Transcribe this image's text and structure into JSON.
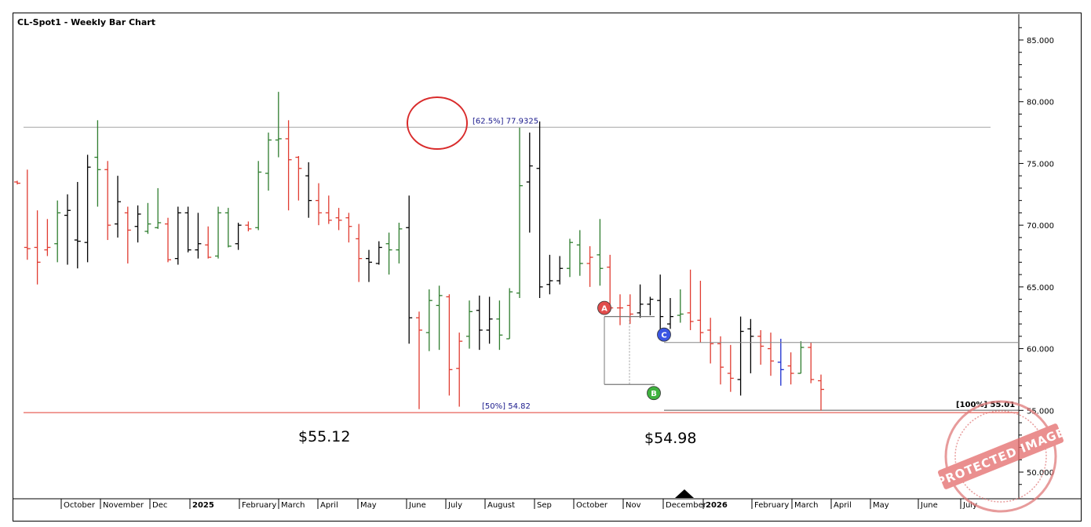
{
  "chart_data": {
    "type": "ohlc-bar",
    "title": "CL-Spot1 - Weekly Bar Chart",
    "y_axis": {
      "ylim": [
        47.5,
        87.5
      ],
      "tick_labels": [
        "85.000",
        "80.000",
        "75.000",
        "70.000",
        "65.000",
        "60.000",
        "55.000",
        "50.000"
      ],
      "tick_values": [
        85,
        80,
        75,
        70,
        65,
        60,
        55,
        50
      ],
      "side": "right"
    },
    "x_axis": {
      "month_labels": [
        "October",
        "November",
        "Dec",
        "2025",
        "February",
        "March",
        "April",
        "May",
        "June",
        "July",
        "August",
        "Sep",
        "October",
        "Nov",
        "December",
        "2026",
        "February",
        "March",
        "April",
        "May",
        "June",
        "July"
      ],
      "bold_labels": [
        "2025",
        "2026"
      ]
    },
    "bars": [
      {
        "o": 73.5,
        "h": 73.6,
        "l": 73.3,
        "c": 73.4,
        "col": "red"
      },
      {
        "o": 68.2,
        "h": 74.5,
        "l": 67.2,
        "c": 68.1,
        "col": "red"
      },
      {
        "o": 68.2,
        "h": 71.2,
        "l": 65.2,
        "c": 67.0,
        "col": "red"
      },
      {
        "o": 68.0,
        "h": 70.5,
        "l": 67.5,
        "c": 68.2,
        "col": "red"
      },
      {
        "o": 68.5,
        "h": 72.0,
        "l": 67.0,
        "c": 71.0,
        "col": "green"
      },
      {
        "o": 70.8,
        "h": 72.5,
        "l": 66.8,
        "c": 71.2,
        "col": "black"
      },
      {
        "o": 68.8,
        "h": 73.5,
        "l": 66.5,
        "c": 68.7,
        "col": "black"
      },
      {
        "o": 68.6,
        "h": 75.7,
        "l": 67.0,
        "c": 74.7,
        "col": "black"
      },
      {
        "o": 75.5,
        "h": 78.5,
        "l": 71.5,
        "c": 74.5,
        "col": "green"
      },
      {
        "o": 74.5,
        "h": 75.2,
        "l": 68.8,
        "c": 70.0,
        "col": "red"
      },
      {
        "o": 70.1,
        "h": 74.0,
        "l": 69.0,
        "c": 71.9,
        "col": "black"
      },
      {
        "o": 71.0,
        "h": 71.5,
        "l": 66.9,
        "c": 69.6,
        "col": "red"
      },
      {
        "o": 69.9,
        "h": 71.6,
        "l": 68.6,
        "c": 70.9,
        "col": "black"
      },
      {
        "o": 69.5,
        "h": 71.8,
        "l": 69.3,
        "c": 70.1,
        "col": "green"
      },
      {
        "o": 69.8,
        "h": 73.0,
        "l": 69.7,
        "c": 70.2,
        "col": "green"
      },
      {
        "o": 70.1,
        "h": 70.6,
        "l": 67.0,
        "c": 67.2,
        "col": "red"
      },
      {
        "o": 67.3,
        "h": 71.5,
        "l": 66.8,
        "c": 71.0,
        "col": "black"
      },
      {
        "o": 71.0,
        "h": 71.5,
        "l": 67.8,
        "c": 68.0,
        "col": "black"
      },
      {
        "o": 68.0,
        "h": 71.0,
        "l": 67.3,
        "c": 68.5,
        "col": "black"
      },
      {
        "o": 68.4,
        "h": 69.9,
        "l": 67.3,
        "c": 67.4,
        "col": "red"
      },
      {
        "o": 67.5,
        "h": 71.5,
        "l": 67.3,
        "c": 71.0,
        "col": "green"
      },
      {
        "o": 71.0,
        "h": 71.4,
        "l": 68.2,
        "c": 68.3,
        "col": "green"
      },
      {
        "o": 68.5,
        "h": 70.2,
        "l": 68.0,
        "c": 70.0,
        "col": "black"
      },
      {
        "o": 70.0,
        "h": 70.3,
        "l": 69.5,
        "c": 69.7,
        "col": "red"
      },
      {
        "o": 69.8,
        "h": 75.2,
        "l": 69.6,
        "c": 74.3,
        "col": "green"
      },
      {
        "o": 74.2,
        "h": 77.5,
        "l": 72.8,
        "c": 76.9,
        "col": "green"
      },
      {
        "o": 76.9,
        "h": 80.8,
        "l": 75.5,
        "c": 77.0,
        "col": "green"
      },
      {
        "o": 77.0,
        "h": 78.5,
        "l": 71.2,
        "c": 75.3,
        "col": "red"
      },
      {
        "o": 75.5,
        "h": 75.6,
        "l": 72.0,
        "c": 74.6,
        "col": "red"
      },
      {
        "o": 74.0,
        "h": 75.1,
        "l": 70.6,
        "c": 72.0,
        "col": "black"
      },
      {
        "o": 72.0,
        "h": 73.4,
        "l": 70.0,
        "c": 71.0,
        "col": "red"
      },
      {
        "o": 71.0,
        "h": 72.4,
        "l": 70.1,
        "c": 70.4,
        "col": "red"
      },
      {
        "o": 70.6,
        "h": 71.4,
        "l": 69.6,
        "c": 70.4,
        "col": "red"
      },
      {
        "o": 70.6,
        "h": 71.0,
        "l": 68.6,
        "c": 69.9,
        "col": "red"
      },
      {
        "o": 68.9,
        "h": 70.1,
        "l": 65.4,
        "c": 67.3,
        "col": "red"
      },
      {
        "o": 67.3,
        "h": 68.0,
        "l": 65.4,
        "c": 67.0,
        "col": "black"
      },
      {
        "o": 66.9,
        "h": 68.7,
        "l": 66.8,
        "c": 68.2,
        "col": "black"
      },
      {
        "o": 68.5,
        "h": 69.4,
        "l": 66.0,
        "c": 68.0,
        "col": "green"
      },
      {
        "o": 68.0,
        "h": 70.2,
        "l": 66.9,
        "c": 69.7,
        "col": "green"
      },
      {
        "o": 69.8,
        "h": 72.4,
        "l": 60.4,
        "c": 62.5,
        "col": "black"
      },
      {
        "o": 62.5,
        "h": 63.0,
        "l": 55.1,
        "c": 61.5,
        "col": "red"
      },
      {
        "o": 61.3,
        "h": 64.8,
        "l": 59.8,
        "c": 63.9,
        "col": "green"
      },
      {
        "o": 63.5,
        "h": 65.1,
        "l": 59.9,
        "c": 64.3,
        "col": "green"
      },
      {
        "o": 64.2,
        "h": 64.4,
        "l": 56.2,
        "c": 58.3,
        "col": "red"
      },
      {
        "o": 58.4,
        "h": 61.3,
        "l": 55.3,
        "c": 60.6,
        "col": "red"
      },
      {
        "o": 61.0,
        "h": 63.9,
        "l": 60.0,
        "c": 63.0,
        "col": "green"
      },
      {
        "o": 63.1,
        "h": 64.3,
        "l": 59.9,
        "c": 61.5,
        "col": "black"
      },
      {
        "o": 61.5,
        "h": 64.2,
        "l": 60.4,
        "c": 62.4,
        "col": "black"
      },
      {
        "o": 62.4,
        "h": 63.9,
        "l": 59.9,
        "c": 61.1,
        "col": "green"
      },
      {
        "o": 60.8,
        "h": 64.9,
        "l": 60.8,
        "c": 64.6,
        "col": "green"
      },
      {
        "o": 64.5,
        "h": 77.9,
        "l": 64.1,
        "c": 73.2,
        "col": "green"
      },
      {
        "o": 73.5,
        "h": 77.5,
        "l": 69.4,
        "c": 74.8,
        "col": "black"
      },
      {
        "o": 74.6,
        "h": 78.4,
        "l": 64.1,
        "c": 65.0,
        "col": "black"
      },
      {
        "o": 65.2,
        "h": 67.6,
        "l": 64.4,
        "c": 65.5,
        "col": "black"
      },
      {
        "o": 65.5,
        "h": 67.5,
        "l": 65.2,
        "c": 66.5,
        "col": "black"
      },
      {
        "o": 66.5,
        "h": 68.9,
        "l": 65.8,
        "c": 68.6,
        "col": "green"
      },
      {
        "o": 68.4,
        "h": 69.6,
        "l": 65.9,
        "c": 66.9,
        "col": "green"
      },
      {
        "o": 66.9,
        "h": 68.3,
        "l": 65.0,
        "c": 67.4,
        "col": "red"
      },
      {
        "o": 67.6,
        "h": 70.5,
        "l": 65.1,
        "c": 66.5,
        "col": "green"
      },
      {
        "o": 66.6,
        "h": 67.6,
        "l": 63.0,
        "c": 63.3,
        "col": "red"
      },
      {
        "o": 63.3,
        "h": 64.4,
        "l": 61.9,
        "c": 63.3,
        "col": "red"
      },
      {
        "o": 63.5,
        "h": 64.4,
        "l": 62.0,
        "c": 62.8,
        "col": "red"
      },
      {
        "o": 62.9,
        "h": 65.2,
        "l": 62.5,
        "c": 63.6,
        "col": "black"
      },
      {
        "o": 63.6,
        "h": 64.2,
        "l": 62.7,
        "c": 64.0,
        "col": "black"
      },
      {
        "o": 63.9,
        "h": 66.0,
        "l": 61.5,
        "c": 62.6,
        "col": "black"
      },
      {
        "o": 62.0,
        "h": 64.1,
        "l": 61.6,
        "c": 62.6,
        "col": "black"
      },
      {
        "o": 62.7,
        "h": 64.8,
        "l": 62.1,
        "c": 62.8,
        "col": "green"
      },
      {
        "o": 62.9,
        "h": 66.4,
        "l": 61.5,
        "c": 62.2,
        "col": "red"
      },
      {
        "o": 62.3,
        "h": 65.5,
        "l": 60.5,
        "c": 61.3,
        "col": "red"
      },
      {
        "o": 61.5,
        "h": 62.5,
        "l": 58.8,
        "c": 60.4,
        "col": "red"
      },
      {
        "o": 60.4,
        "h": 61.0,
        "l": 57.1,
        "c": 58.5,
        "col": "red"
      },
      {
        "o": 58.0,
        "h": 60.3,
        "l": 56.5,
        "c": 57.6,
        "col": "red"
      },
      {
        "o": 57.5,
        "h": 62.6,
        "l": 56.2,
        "c": 61.4,
        "col": "black"
      },
      {
        "o": 61.6,
        "h": 62.4,
        "l": 58.0,
        "c": 61.0,
        "col": "black"
      },
      {
        "o": 61.0,
        "h": 61.5,
        "l": 58.7,
        "c": 60.2,
        "col": "red"
      },
      {
        "o": 60.0,
        "h": 61.3,
        "l": 57.8,
        "c": 59.0,
        "col": "red"
      },
      {
        "o": 58.9,
        "h": 60.8,
        "l": 57.0,
        "c": 58.3,
        "col": "blue"
      },
      {
        "o": 58.6,
        "h": 59.7,
        "l": 57.1,
        "c": 58.0,
        "col": "red"
      },
      {
        "o": 58.0,
        "h": 60.6,
        "l": 58.0,
        "c": 60.1,
        "col": "green"
      },
      {
        "o": 60.1,
        "h": 60.5,
        "l": 57.2,
        "c": 57.5,
        "col": "red"
      },
      {
        "o": 57.4,
        "h": 57.9,
        "l": 54.98,
        "c": 56.7,
        "col": "red"
      }
    ],
    "bar_x_start": 22,
    "bar_spacing": 12.8,
    "fib_lines": [
      {
        "label": "[62.5%] 77.9325",
        "value": 77.9325,
        "color": "#a6a6a6"
      },
      {
        "label": "[50%] 54.82",
        "value": 54.82,
        "color": "#e03c31"
      }
    ],
    "projection": {
      "label": "[100%] 55.01",
      "value": 55.01
    },
    "abc_points": [
      {
        "label": "A",
        "value": 62.6,
        "color": "#e14c4c"
      },
      {
        "label": "B",
        "value": 57.1,
        "color": "#3fb13f"
      },
      {
        "label": "C",
        "value": 60.5,
        "color": "#3a55e3"
      }
    ],
    "price_notes": [
      "$55.12",
      "$54.98"
    ],
    "watermark": "PROTECTED IMAGE",
    "colors": {
      "up": "#2e7d2e",
      "down": "#e03c31",
      "neutral": "#000000",
      "inside": "#1a2ccf",
      "circle": "#d92b2b"
    }
  }
}
